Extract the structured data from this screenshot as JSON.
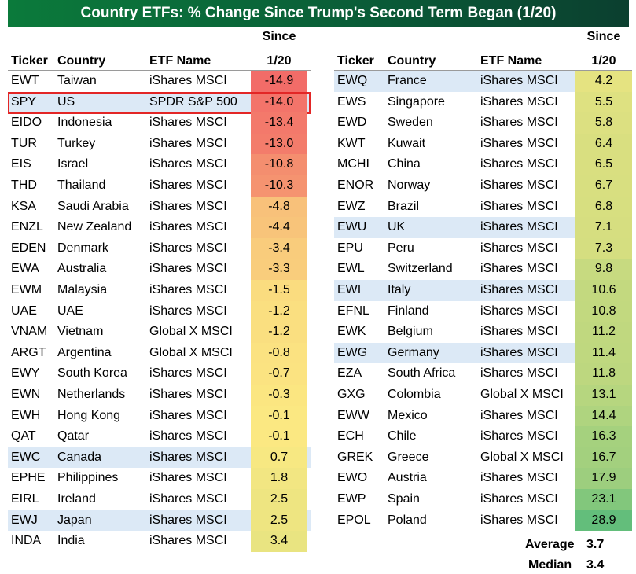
{
  "title": "Country ETFs: % Change Since Trump's Second Term Began (1/20)",
  "headers": {
    "ticker": "Ticker",
    "country": "Country",
    "etf": "ETF Name",
    "since_line1": "Since",
    "since_line2": "1/20"
  },
  "colors": {
    "title_bg_start": "#0b7a3b",
    "title_bg_end": "#0b3f2f",
    "highlight_row": "#dce9f6",
    "highlight_box": "#e32626",
    "scale_low": "#f26c68",
    "scale_mid": "#fbe982",
    "scale_high": "#63be7b"
  },
  "chart_data": {
    "type": "table",
    "left": [
      {
        "ticker": "EWT",
        "country": "Taiwan",
        "etf": "iShares MSCI",
        "value": "-14.9",
        "hl": false
      },
      {
        "ticker": "SPY",
        "country": "US",
        "etf": "SPDR S&P 500",
        "value": "-14.0",
        "hl": true,
        "boxed": true
      },
      {
        "ticker": "EIDO",
        "country": "Indonesia",
        "etf": "iShares MSCI",
        "value": "-13.4",
        "hl": false
      },
      {
        "ticker": "TUR",
        "country": "Turkey",
        "etf": "iShares MSCI",
        "value": "-13.0",
        "hl": false
      },
      {
        "ticker": "EIS",
        "country": "Israel",
        "etf": "iShares MSCI",
        "value": "-10.8",
        "hl": false
      },
      {
        "ticker": "THD",
        "country": "Thailand",
        "etf": "iShares MSCI",
        "value": "-10.3",
        "hl": false
      },
      {
        "ticker": "KSA",
        "country": "Saudi Arabia",
        "etf": "iShares MSCI",
        "value": "-4.8",
        "hl": false
      },
      {
        "ticker": "ENZL",
        "country": "New Zealand",
        "etf": "iShares MSCI",
        "value": "-4.4",
        "hl": false
      },
      {
        "ticker": "EDEN",
        "country": "Denmark",
        "etf": "iShares MSCI",
        "value": "-3.4",
        "hl": false
      },
      {
        "ticker": "EWA",
        "country": "Australia",
        "etf": "iShares MSCI",
        "value": "-3.3",
        "hl": false
      },
      {
        "ticker": "EWM",
        "country": "Malaysia",
        "etf": "iShares MSCI",
        "value": "-1.5",
        "hl": false
      },
      {
        "ticker": "UAE",
        "country": "UAE",
        "etf": "iShares MSCI",
        "value": "-1.2",
        "hl": false
      },
      {
        "ticker": "VNAM",
        "country": "Vietnam",
        "etf": "Global X MSCI",
        "value": "-1.2",
        "hl": false
      },
      {
        "ticker": "ARGT",
        "country": "Argentina",
        "etf": "Global X MSCI",
        "value": "-0.8",
        "hl": false
      },
      {
        "ticker": "EWY",
        "country": "South Korea",
        "etf": "iShares MSCI",
        "value": "-0.7",
        "hl": false
      },
      {
        "ticker": "EWN",
        "country": "Netherlands",
        "etf": "iShares MSCI",
        "value": "-0.3",
        "hl": false
      },
      {
        "ticker": "EWH",
        "country": "Hong Kong",
        "etf": "iShares MSCI",
        "value": "-0.1",
        "hl": false
      },
      {
        "ticker": "QAT",
        "country": "Qatar",
        "etf": "iShares MSCI",
        "value": "-0.1",
        "hl": false
      },
      {
        "ticker": "EWC",
        "country": "Canada",
        "etf": "iShares MSCI",
        "value": "0.7",
        "hl": true
      },
      {
        "ticker": "EPHE",
        "country": "Philippines",
        "etf": "iShares MSCI",
        "value": "1.8",
        "hl": false
      },
      {
        "ticker": "EIRL",
        "country": "Ireland",
        "etf": "iShares MSCI",
        "value": "2.5",
        "hl": false
      },
      {
        "ticker": "EWJ",
        "country": "Japan",
        "etf": "iShares MSCI",
        "value": "2.5",
        "hl": true
      },
      {
        "ticker": "INDA",
        "country": "India",
        "etf": "iShares MSCI",
        "value": "3.4",
        "hl": false
      }
    ],
    "right": [
      {
        "ticker": "EWQ",
        "country": "France",
        "etf": "iShares MSCI",
        "value": "4.2",
        "hl": true
      },
      {
        "ticker": "EWS",
        "country": "Singapore",
        "etf": "iShares MSCI",
        "value": "5.5",
        "hl": false
      },
      {
        "ticker": "EWD",
        "country": "Sweden",
        "etf": "iShares MSCI",
        "value": "5.8",
        "hl": false
      },
      {
        "ticker": "KWT",
        "country": "Kuwait",
        "etf": "iShares MSCI",
        "value": "6.4",
        "hl": false
      },
      {
        "ticker": "MCHI",
        "country": "China",
        "etf": "iShares MSCI",
        "value": "6.5",
        "hl": false
      },
      {
        "ticker": "ENOR",
        "country": "Norway",
        "etf": "iShares MSCI",
        "value": "6.7",
        "hl": false
      },
      {
        "ticker": "EWZ",
        "country": "Brazil",
        "etf": "iShares MSCI",
        "value": "6.8",
        "hl": false
      },
      {
        "ticker": "EWU",
        "country": "UK",
        "etf": "iShares MSCI",
        "value": "7.1",
        "hl": true
      },
      {
        "ticker": "EPU",
        "country": "Peru",
        "etf": "iShares MSCI",
        "value": "7.3",
        "hl": false
      },
      {
        "ticker": "EWL",
        "country": "Switzerland",
        "etf": "iShares MSCI",
        "value": "9.8",
        "hl": false
      },
      {
        "ticker": "EWI",
        "country": "Italy",
        "etf": "iShares MSCI",
        "value": "10.6",
        "hl": true
      },
      {
        "ticker": "EFNL",
        "country": "Finland",
        "etf": "iShares MSCI",
        "value": "10.8",
        "hl": false
      },
      {
        "ticker": "EWK",
        "country": "Belgium",
        "etf": "iShares MSCI",
        "value": "11.2",
        "hl": false
      },
      {
        "ticker": "EWG",
        "country": "Germany",
        "etf": "iShares MSCI",
        "value": "11.4",
        "hl": true
      },
      {
        "ticker": "EZA",
        "country": "South Africa",
        "etf": "iShares MSCI",
        "value": "11.8",
        "hl": false
      },
      {
        "ticker": "GXG",
        "country": "Colombia",
        "etf": "Global X MSCI",
        "value": "13.1",
        "hl": false
      },
      {
        "ticker": "EWW",
        "country": "Mexico",
        "etf": "iShares MSCI",
        "value": "14.4",
        "hl": false
      },
      {
        "ticker": "ECH",
        "country": "Chile",
        "etf": "iShares MSCI",
        "value": "16.3",
        "hl": false
      },
      {
        "ticker": "GREK",
        "country": "Greece",
        "etf": "Global X MSCI",
        "value": "16.7",
        "hl": false
      },
      {
        "ticker": "EWO",
        "country": "Austria",
        "etf": "iShares MSCI",
        "value": "17.9",
        "hl": false
      },
      {
        "ticker": "EWP",
        "country": "Spain",
        "etf": "iShares MSCI",
        "value": "23.1",
        "hl": false
      },
      {
        "ticker": "EPOL",
        "country": "Poland",
        "etf": "iShares MSCI",
        "value": "28.9",
        "hl": false
      }
    ],
    "value_range": [
      -14.9,
      28.9
    ]
  },
  "summary": {
    "average_label": "Average",
    "average_value": "3.7",
    "median_label": "Median",
    "median_value": "3.4"
  }
}
